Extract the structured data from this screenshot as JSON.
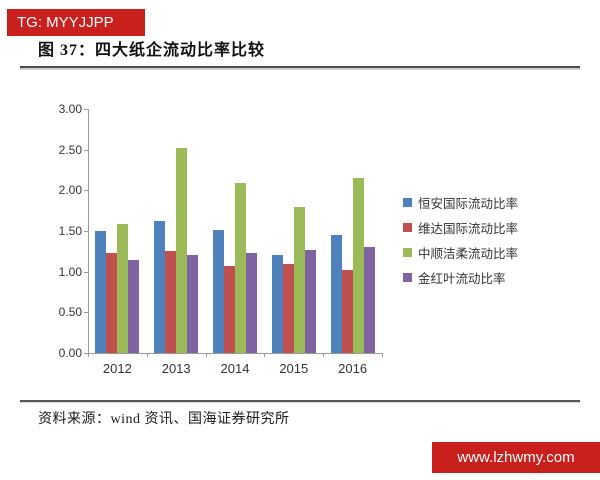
{
  "watermark_top": {
    "label": "TG: MYYJJPP"
  },
  "watermark_bottom": {
    "label": "www.lzhwmy.com"
  },
  "figure": {
    "title": "图 37：四大纸企流动比率比较",
    "source": "资料来源：wind 资讯、国海证券研究所"
  },
  "colors": {
    "banner_red": "#C9201D",
    "axis": "#9A9A9A",
    "series_blue": "#4F81BD",
    "series_red": "#C0504D",
    "series_green": "#9BBB59",
    "series_purple": "#8064A2"
  },
  "chart_data": {
    "type": "bar",
    "title": "四大纸企流动比率比较",
    "xlabel": "",
    "ylabel": "",
    "categories": [
      "2012",
      "2013",
      "2014",
      "2015",
      "2016"
    ],
    "series": [
      {
        "name": "恒安国际流动比率",
        "color": "#4F81BD",
        "values": [
          1.5,
          1.62,
          1.51,
          1.21,
          1.45
        ]
      },
      {
        "name": "维达国际流动比率",
        "color": "#C0504D",
        "values": [
          1.23,
          1.26,
          1.07,
          1.1,
          1.02
        ]
      },
      {
        "name": "中顺洁柔流动比率",
        "color": "#9BBB59",
        "values": [
          1.58,
          2.52,
          2.09,
          1.8,
          2.15
        ]
      },
      {
        "name": "金红叶流动比率",
        "color": "#8064A2",
        "values": [
          1.14,
          1.2,
          1.23,
          1.27,
          1.3
        ]
      }
    ],
    "ylim": [
      0.0,
      3.0
    ],
    "ytick_step": 0.5,
    "ytick_labels": [
      "3.00",
      "2.50",
      "2.00",
      "1.50",
      "1.00",
      "0.50",
      "0.00"
    ],
    "grid": false,
    "legend_position": "right"
  }
}
